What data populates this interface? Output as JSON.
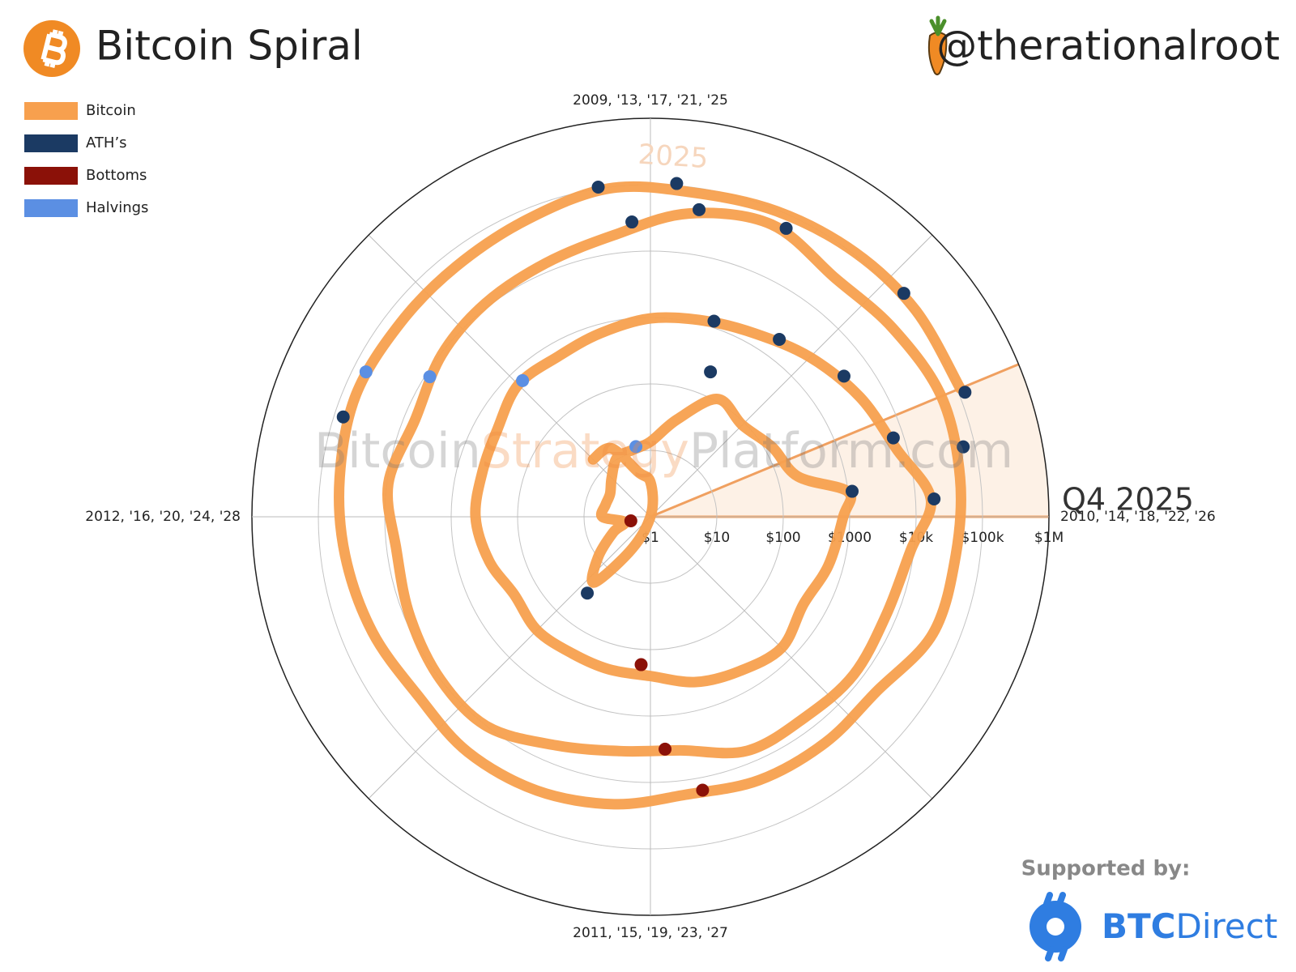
{
  "header": {
    "title": "Bitcoin Spiral",
    "handle": "@therationalroot"
  },
  "footer": {
    "supported": "Supported by:",
    "brand_bold": "BTC",
    "brand_rest": "Direct"
  },
  "chart_data": {
    "type": "polar",
    "direction": "clockwise",
    "xlim": [
      2009,
      2013
    ],
    "xticks": [
      {
        "value": 2009,
        "label": "2009, '13, '17, '21, '25"
      },
      {
        "value": 2010,
        "label": "2010, '14, '18, '22, '26"
      },
      {
        "value": 2011,
        "label": "2011, '15, '19, '23, '27"
      },
      {
        "value": 2012,
        "label": "2012, '16, '20, '24, '28"
      }
    ],
    "log_y": true,
    "ylim": [
      1,
      1000000
    ],
    "yticks": [
      {
        "value": 1,
        "label": "$1"
      },
      {
        "value": 10,
        "label": "$10"
      },
      {
        "value": 100,
        "label": "$100"
      },
      {
        "value": 1000,
        "label": "$1000"
      },
      {
        "value": 10000,
        "label": "$10k"
      },
      {
        "value": 100000,
        "label": "$100k"
      },
      {
        "value": 1000000,
        "label": "$1M"
      }
    ],
    "grid": true,
    "legend": "top-left",
    "highlight": {
      "label": "Q4 2025",
      "x": [
        2025.75,
        2026
      ],
      "color": "#fdf1e6"
    },
    "year_label": {
      "text": "2025",
      "x": 2025.04
    },
    "watermark": [
      "Bitcoin",
      "Strategy",
      "Platform.com"
    ],
    "series": [
      {
        "name": "Bitcoin",
        "color": "#f7a04e",
        "mode": "line",
        "x": [
          2010.5,
          2010.67,
          2010.83,
          2011.0,
          2011.17,
          2011.33,
          2011.45,
          2011.58,
          2011.75,
          2011.87,
          2012.0,
          2012.17,
          2012.33,
          2012.5,
          2012.67,
          2012.83,
          2013.0,
          2013.17,
          2013.33,
          2013.5,
          2013.67,
          2013.83,
          2013.92,
          2014.0,
          2014.17,
          2014.33,
          2014.5,
          2014.67,
          2014.83,
          2015.0,
          2015.17,
          2015.33,
          2015.5,
          2015.67,
          2015.83,
          2016.0,
          2016.17,
          2016.33,
          2016.5,
          2016.67,
          2016.83,
          2017.0,
          2017.17,
          2017.33,
          2017.5,
          2017.67,
          2017.83,
          2017.96,
          2018.08,
          2018.25,
          2018.42,
          2018.58,
          2018.75,
          2018.92,
          2019.08,
          2019.25,
          2019.42,
          2019.58,
          2019.75,
          2019.92,
          2020.08,
          2020.25,
          2020.42,
          2020.58,
          2020.75,
          2020.92,
          2021.08,
          2021.25,
          2021.42,
          2021.58,
          2021.75,
          2021.92,
          2022.08,
          2022.25,
          2022.42,
          2022.58,
          2022.75,
          2022.92,
          2023.08,
          2023.25,
          2023.42,
          2023.58,
          2023.75,
          2023.92,
          2024.08,
          2024.25,
          2024.42,
          2024.58,
          2024.75,
          2024.92,
          2025.08,
          2025.25,
          2025.42,
          2025.58,
          2025.75
        ],
        "values": [
          0.06,
          0.065,
          0.2,
          0.3,
          0.9,
          3.5,
          20,
          10,
          4,
          2.5,
          5.3,
          5,
          5,
          6.7,
          10.5,
          11,
          13.5,
          33,
          110,
          90,
          130,
          200,
          1000,
          800,
          600,
          450,
          620,
          480,
          380,
          250,
          240,
          235,
          260,
          230,
          330,
          430,
          415,
          450,
          650,
          610,
          730,
          970,
          1150,
          1500,
          2500,
          4300,
          7000,
          17000,
          9000,
          7000,
          7500,
          6500,
          6500,
          3500,
          3600,
          5300,
          10000,
          10000,
          8300,
          7200,
          9500,
          6800,
          9500,
          11500,
          13500,
          19000,
          40000,
          58000,
          35000,
          42000,
          55000,
          50000,
          43000,
          40000,
          20000,
          20000,
          19500,
          16500,
          23000,
          29000,
          30500,
          26000,
          34000,
          43000,
          52000,
          63000,
          58000,
          59000,
          70000,
          96000,
          84000,
          95000,
          108000,
          115000,
          112000
        ]
      },
      {
        "name": "ATH’s",
        "color": "#1b3a63",
        "mode": "markers",
        "x": [
          2011.44,
          2013.25,
          2013.92,
          2017.2,
          2017.4,
          2017.6,
          2017.8,
          2017.96,
          2020.96,
          2021.1,
          2021.28,
          2021.86,
          2024.2,
          2024.9,
          2025.05,
          2025.54,
          2025.76
        ],
        "values": [
          31,
          230,
          1150,
          1250,
          2000,
          4000,
          7000,
          19000,
          28000,
          48000,
          63000,
          67000,
          73000,
          106000,
          108000,
          122000,
          124000
        ]
      },
      {
        "name": "Bottoms",
        "color": "#8b1108",
        "mode": "markers",
        "x": [
          2011.87,
          2015.04,
          2018.96,
          2022.88
        ],
        "values": [
          2,
          170,
          3200,
          15500
        ]
      },
      {
        "name": "Halvings",
        "color": "#5b8fe3",
        "mode": "markers",
        "x": [
          2012.87,
          2016.52,
          2020.36,
          2024.3
        ],
        "values": [
          12,
          650,
          8600,
          64000
        ]
      }
    ]
  }
}
